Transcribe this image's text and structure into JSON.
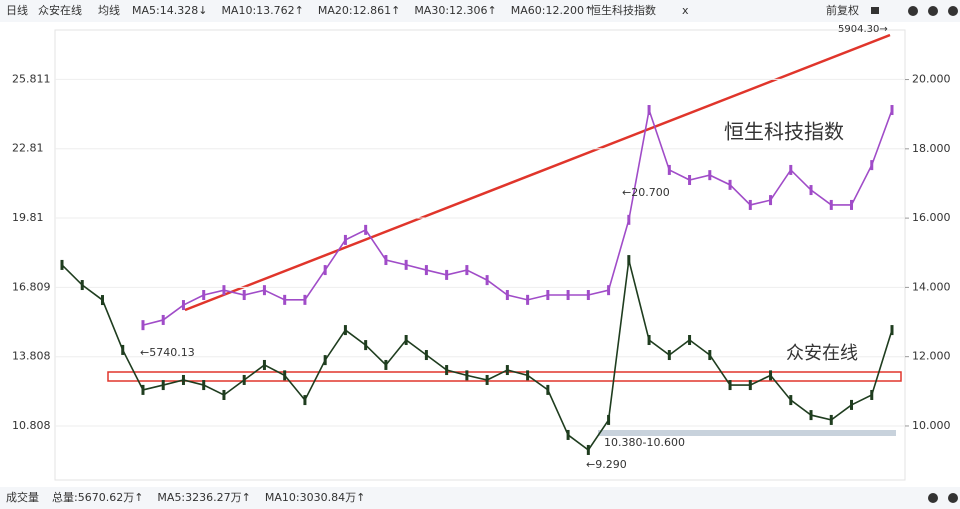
{
  "header": {
    "period": "日线",
    "stock": "众安在线",
    "ma_label": "均线",
    "ma": [
      {
        "text": "MA5:14.328↓",
        "color": "#222"
      },
      {
        "text": "MA10:13.762↑",
        "color": "#e08a1e"
      },
      {
        "text": "MA20:12.861↑",
        "color": "#d43fb5"
      },
      {
        "text": "MA30:12.306↑",
        "color": "#1b8a2a"
      },
      {
        "text": "MA60:12.200↑",
        "color": "#3f7fc0"
      }
    ],
    "overlay": "恒生科技指数",
    "close": "x",
    "adjust": "前复权"
  },
  "footer": {
    "label": "成交量",
    "items": [
      {
        "text": "总量:5670.62万↑",
        "color": "#1b8a2a"
      },
      {
        "text": "MA5:3236.27万↑",
        "color": "#e08a1e"
      },
      {
        "text": "MA10:3030.84万↑",
        "color": "#333"
      }
    ]
  },
  "chart_data": {
    "type": "line",
    "ylim": [
      8.47,
      27.95
    ],
    "yticks": [
      10.808,
      13.808,
      16.809,
      19.81,
      22.81,
      25.811
    ],
    "y2lim": [
      8.44,
      21.43
    ],
    "y2ticks": [
      {
        "value": 10,
        "label": "10.000"
      },
      {
        "value": 12,
        "label": "12.000"
      },
      {
        "value": 14,
        "label": "14.000"
      },
      {
        "value": 16,
        "label": "16.000"
      },
      {
        "value": 18,
        "label": "18.000"
      },
      {
        "value": 20,
        "label": "20.000"
      }
    ],
    "series": [
      {
        "name": "众安在线",
        "color": "#1f3d1f",
        "values": [
          17.78,
          16.91,
          16.26,
          14.1,
          12.37,
          12.58,
          12.8,
          12.58,
          12.15,
          12.8,
          13.45,
          13.0,
          11.93,
          13.66,
          14.96,
          14.31,
          13.45,
          14.53,
          13.88,
          13.23,
          13.0,
          12.8,
          13.23,
          13.0,
          12.37,
          10.42,
          9.77,
          11.07,
          17.99,
          14.53,
          13.88,
          14.53,
          13.88,
          12.58,
          12.58,
          13.0,
          11.93,
          11.28,
          11.07,
          11.72,
          12.15,
          14.96
        ]
      },
      {
        "name": "恒生科技指数",
        "color": "#a04cc8",
        "axis": "y2",
        "values": [
          null,
          null,
          null,
          null,
          12.91,
          13.06,
          13.49,
          13.78,
          13.92,
          13.78,
          13.92,
          13.64,
          13.64,
          14.5,
          15.37,
          15.66,
          14.79,
          14.65,
          14.5,
          14.36,
          14.5,
          14.21,
          13.78,
          13.64,
          13.78,
          13.78,
          13.78,
          13.92,
          15.95,
          19.12,
          17.39,
          17.1,
          17.24,
          16.96,
          16.38,
          16.52,
          17.39,
          16.81,
          16.38,
          16.38,
          17.53,
          19.12
        ]
      }
    ],
    "annotations": [
      "←5740.13",
      "←20.700",
      "10.380-10.600",
      "←9.290",
      "5904.30→",
      "恒生科技指数",
      "众安在线"
    ]
  }
}
